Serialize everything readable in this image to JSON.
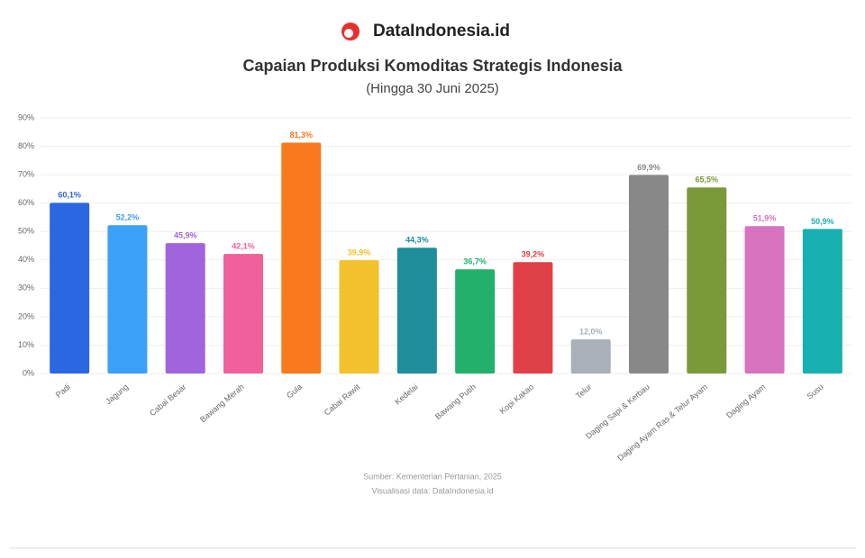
{
  "header": {
    "brand": "DataIndonesia.id"
  },
  "chart_data": {
    "type": "bar",
    "title": "Capaian Produksi Komoditas Strategis Indonesia",
    "subtitle": "(Hingga 30 Juni 2025)",
    "categories": [
      "Padi",
      "Jagung",
      "Cabai Besar",
      "Bawang Merah",
      "Gula",
      "Cabai Rawit",
      "Kedelai",
      "Bawang Putih",
      "Kopi Kakao",
      "Telur",
      "Daging Sapi & Kerbau",
      "Daging Ayam Ras & Telur Ayam",
      "Daging Ayam",
      "Susu"
    ],
    "values": [
      60.1,
      52.2,
      45.9,
      42.1,
      81.3,
      39.9,
      44.3,
      36.7,
      39.2,
      12.0,
      69.9,
      65.5,
      51.9,
      50.9
    ],
    "value_labels": [
      "60,1%",
      "52,2%",
      "45,9%",
      "42,1%",
      "81,3%",
      "39,9%",
      "44,3%",
      "36,7%",
      "39,2%",
      "12,0%",
      "69,9%",
      "65,5%",
      "51,9%",
      "50,9%"
    ],
    "colors": [
      "#2a67e0",
      "#3aa0f8",
      "#a064dc",
      "#f0609a",
      "#f87a1c",
      "#f2c12c",
      "#1e8e9a",
      "#22b06a",
      "#e04048",
      "#aab0b8",
      "#888888",
      "#7a9a3a",
      "#d873c0",
      "#18b0b0"
    ],
    "ylim": [
      0,
      90
    ],
    "yticks": [
      {
        "value": 0,
        "label": "0%"
      },
      {
        "value": 10,
        "label": "10%"
      },
      {
        "value": 20,
        "label": "20%"
      },
      {
        "value": 30,
        "label": "30%"
      },
      {
        "value": 40,
        "label": "40%"
      },
      {
        "value": 50,
        "label": "50%"
      },
      {
        "value": 60,
        "label": "60%"
      },
      {
        "value": 70,
        "label": "70%"
      },
      {
        "value": 80,
        "label": "80%"
      },
      {
        "value": 90,
        "label": "90%"
      }
    ],
    "grid": true
  },
  "footer": {
    "source": "Sumber: Kementerian Pertanian, 2025",
    "credit": "Visualisasi data: DataIndonesia.id"
  }
}
